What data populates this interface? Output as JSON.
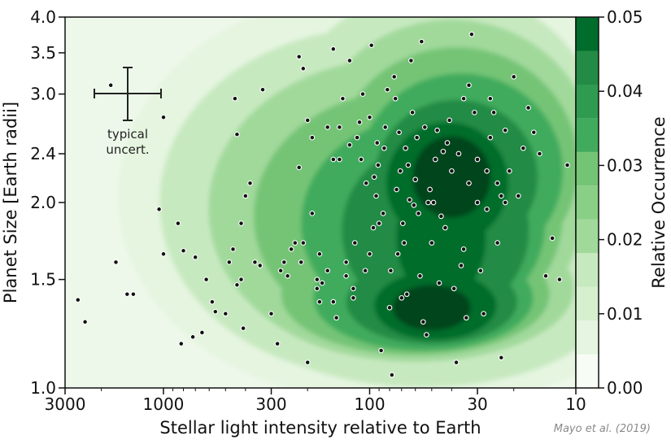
{
  "chart_data": {
    "type": "scatter",
    "title": "",
    "xlabel": "Stellar light intensity relative to Earth",
    "ylabel": "Planet Size [Earth radii]",
    "xscale": "log",
    "x_reversed": true,
    "yscale": "log",
    "xlim": [
      3000,
      10
    ],
    "ylim": [
      1.0,
      4.0
    ],
    "xticks": [
      {
        "value": 3000,
        "label": "3000"
      },
      {
        "value": 1000,
        "label": "1000"
      },
      {
        "value": 300,
        "label": "300"
      },
      {
        "value": 100,
        "label": "100"
      },
      {
        "value": 30,
        "label": "30"
      },
      {
        "value": 10,
        "label": "10"
      }
    ],
    "yticks": [
      {
        "value": 1.0,
        "label": "1.0"
      },
      {
        "value": 1.5,
        "label": "1.5"
      },
      {
        "value": 2.0,
        "label": "2.0"
      },
      {
        "value": 2.4,
        "label": "2.4"
      },
      {
        "value": 3.0,
        "label": "3.0"
      },
      {
        "value": 3.5,
        "label": "3.5"
      },
      {
        "value": 4.0,
        "label": "4.0"
      }
    ],
    "grid": false,
    "density": {
      "description": "filled contour of relative occurrence",
      "colormap": [
        "#f7fcf5",
        "#e5f5e0",
        "#c7e9c0",
        "#a1d99b",
        "#74c476",
        "#41ab5d",
        "#238b45",
        "#006d2c",
        "#00441b"
      ],
      "peaks": [
        {
          "x": 50,
          "y": 1.35,
          "value": 0.05
        },
        {
          "x": 40,
          "y": 2.2,
          "value": 0.05
        }
      ]
    },
    "colorbar": {
      "label": "Relative Occurrence",
      "min": 0.0,
      "max": 0.05,
      "ticks": [
        {
          "value": 0.0,
          "label": "0.00"
        },
        {
          "value": 0.01,
          "label": "0.01"
        },
        {
          "value": 0.02,
          "label": "0.02"
        },
        {
          "value": 0.03,
          "label": "0.03"
        },
        {
          "value": 0.04,
          "label": "0.04"
        },
        {
          "value": 0.05,
          "label": "0.05"
        }
      ],
      "levels": 11
    },
    "annotation": {
      "line1": "typical",
      "line2": "uncert."
    },
    "credit": "Mayo et al. (2019)",
    "points": [
      [
        2600,
        1.39
      ],
      [
        2400,
        1.28
      ],
      [
        1800,
        3.1
      ],
      [
        1700,
        1.6
      ],
      [
        1500,
        1.42
      ],
      [
        1400,
        1.42
      ],
      [
        1050,
        1.95
      ],
      [
        1000,
        1.65
      ],
      [
        1000,
        2.75
      ],
      [
        850,
        1.85
      ],
      [
        800,
        1.67
      ],
      [
        700,
        1.63
      ],
      [
        820,
        1.18
      ],
      [
        720,
        1.21
      ],
      [
        650,
        1.23
      ],
      [
        620,
        1.5
      ],
      [
        580,
        1.38
      ],
      [
        560,
        1.33
      ],
      [
        500,
        1.32
      ],
      [
        480,
        1.6
      ],
      [
        460,
        1.68
      ],
      [
        440,
        1.47
      ],
      [
        420,
        1.5
      ],
      [
        410,
        1.25
      ],
      [
        450,
        2.95
      ],
      [
        440,
        2.58
      ],
      [
        420,
        1.85
      ],
      [
        400,
        2.05
      ],
      [
        380,
        2.15
      ],
      [
        360,
        1.6
      ],
      [
        340,
        1.58
      ],
      [
        330,
        3.05
      ],
      [
        300,
        1.32
      ],
      [
        280,
        1.18
      ],
      [
        270,
        1.55
      ],
      [
        260,
        1.6
      ],
      [
        250,
        1.52
      ],
      [
        240,
        1.68
      ],
      [
        230,
        1.72
      ],
      [
        220,
        2.28
      ],
      [
        220,
        3.45
      ],
      [
        210,
        3.3
      ],
      [
        200,
        2.72
      ],
      [
        190,
        2.55
      ],
      [
        180,
        1.5
      ],
      [
        180,
        1.45
      ],
      [
        175,
        1.65
      ],
      [
        170,
        1.48
      ],
      [
        160,
        1.55
      ],
      [
        150,
        1.38
      ],
      [
        150,
        3.55
      ],
      [
        145,
        1.3
      ],
      [
        140,
        2.35
      ],
      [
        140,
        2.65
      ],
      [
        130,
        1.52
      ],
      [
        130,
        1.6
      ],
      [
        125,
        3.4
      ],
      [
        120,
        1.4
      ],
      [
        120,
        1.45
      ],
      [
        115,
        2.55
      ],
      [
        110,
        2.35
      ],
      [
        105,
        1.55
      ],
      [
        100,
        1.65
      ],
      [
        100,
        2.75
      ],
      [
        98,
        3.6
      ],
      [
        95,
        2.2
      ],
      [
        92,
        2.5
      ],
      [
        90,
        1.85
      ],
      [
        88,
        1.15
      ],
      [
        85,
        2.45
      ],
      [
        80,
        1.35
      ],
      [
        78,
        1.05
      ],
      [
        76,
        3.2
      ],
      [
        74,
        2.1
      ],
      [
        72,
        2.6
      ],
      [
        70,
        1.4
      ],
      [
        68,
        1.72
      ],
      [
        65,
        2.3
      ],
      [
        62,
        2.8
      ],
      [
        60,
        2.18
      ],
      [
        58,
        1.92
      ],
      [
        56,
        3.65
      ],
      [
        55,
        1.28
      ],
      [
        52,
        2.0
      ],
      [
        50,
        1.72
      ],
      [
        48,
        2.35
      ],
      [
        46,
        1.48
      ],
      [
        45,
        1.9
      ],
      [
        42,
        2.5
      ],
      [
        40,
        2.25
      ],
      [
        38,
        1.1
      ],
      [
        36,
        1.58
      ],
      [
        35,
        2.95
      ],
      [
        34,
        1.3
      ],
      [
        33,
        2.15
      ],
      [
        32,
        3.75
      ],
      [
        31,
        2.8
      ],
      [
        30,
        2.0
      ],
      [
        28,
        1.32
      ],
      [
        27,
        2.25
      ],
      [
        26,
        2.55
      ],
      [
        25,
        2.8
      ],
      [
        24,
        2.15
      ],
      [
        23,
        1.12
      ],
      [
        22,
        2.62
      ],
      [
        21,
        2.25
      ],
      [
        20,
        3.2
      ],
      [
        19,
        2.05
      ],
      [
        18,
        2.45
      ],
      [
        17,
        2.85
      ],
      [
        16,
        2.6
      ],
      [
        15,
        2.4
      ],
      [
        14,
        1.52
      ],
      [
        13,
        1.75
      ],
      [
        12,
        1.5
      ],
      [
        11,
        2.3
      ],
      [
        175,
        1.38
      ],
      [
        200,
        1.1
      ],
      [
        190,
        1.92
      ],
      [
        210,
        1.72
      ],
      [
        215,
        1.6
      ],
      [
        160,
        2.65
      ],
      [
        150,
        2.35
      ],
      [
        135,
        2.95
      ],
      [
        125,
        2.48
      ],
      [
        118,
        1.72
      ],
      [
        112,
        2.7
      ],
      [
        108,
        3.0
      ],
      [
        104,
        2.15
      ],
      [
        96,
        1.82
      ],
      [
        93,
        2.05
      ],
      [
        91,
        2.3
      ],
      [
        86,
        1.92
      ],
      [
        84,
        2.65
      ],
      [
        82,
        3.05
      ],
      [
        79,
        1.55
      ],
      [
        75,
        2.95
      ],
      [
        73,
        1.65
      ],
      [
        71,
        2.25
      ],
      [
        69,
        1.85
      ],
      [
        67,
        2.45
      ],
      [
        66,
        1.42
      ],
      [
        64,
        2.02
      ],
      [
        63,
        3.4
      ],
      [
        61,
        1.98
      ],
      [
        59,
        2.55
      ],
      [
        57,
        1.52
      ],
      [
        54,
        2.65
      ],
      [
        53,
        1.22
      ],
      [
        51,
        2.1
      ],
      [
        49,
        2.0
      ],
      [
        47,
        2.62
      ],
      [
        44,
        2.42
      ],
      [
        43,
        1.82
      ],
      [
        41,
        2.72
      ],
      [
        39,
        1.45
      ],
      [
        37,
        2.4
      ],
      [
        35,
        1.68
      ],
      [
        33,
        3.1
      ],
      [
        30,
        2.35
      ],
      [
        29,
        1.55
      ],
      [
        27,
        1.95
      ],
      [
        26,
        2.95
      ],
      [
        24,
        1.72
      ],
      [
        23,
        2.05
      ],
      [
        22,
        2.0
      ]
    ]
  }
}
